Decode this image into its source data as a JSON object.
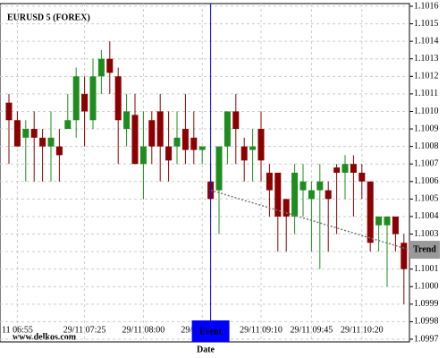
{
  "chart_data": {
    "type": "candlestick",
    "title": "EURUSD 5 (FOREX)",
    "watermark": "www.delkos.com",
    "x_label": "Date",
    "categories": [
      null,
      "11 06:55",
      null,
      null,
      null,
      null,
      null,
      null,
      null,
      "29/11 07:25",
      null,
      null,
      null,
      null,
      null,
      null,
      "29/11 08:00",
      null,
      null,
      null,
      null,
      null,
      null,
      "29/11 08:35",
      null,
      null,
      null,
      null,
      null,
      null,
      "29/11 09:10",
      null,
      null,
      null,
      null,
      null,
      "29/11 09:45",
      null,
      null,
      null,
      null,
      null,
      "29/11 10:20",
      null,
      null,
      null,
      null,
      null
    ],
    "open": [
      1.10105,
      1.10095,
      1.10085,
      1.1009,
      1.10085,
      1.1008,
      1.1008,
      1.1009,
      1.10095,
      1.1011,
      1.10095,
      1.1012,
      1.1013,
      1.1012,
      1.1009,
      1.10098,
      1.1007,
      1.10095,
      1.101,
      1.1008,
      1.1008,
      1.1009,
      1.10085,
      1.10078,
      1.1006,
      1.10055,
      1.1008,
      1.101,
      1.1008,
      1.10078,
      1.1009,
      1.10065,
      1.10065,
      1.1005,
      1.1004,
      1.10055,
      1.1005,
      1.10055,
      1.10055,
      1.10068,
      1.10065,
      1.1007,
      1.10065,
      1.1006,
      1.10035,
      1.10035,
      1.1004,
      1.10025
    ],
    "high": [
      1.1011,
      1.101,
      1.10095,
      1.101,
      1.1009,
      1.101,
      1.1009,
      1.1011,
      1.10125,
      1.1012,
      1.1013,
      1.10135,
      1.1014,
      1.10125,
      1.1011,
      1.1011,
      1.101,
      1.101,
      1.1011,
      1.101,
      1.101,
      1.1011,
      1.101,
      1.1008,
      1.1007,
      1.1008,
      1.101,
      1.1011,
      1.10085,
      1.1009,
      1.101,
      1.1007,
      1.10065,
      1.1005,
      1.1007,
      1.1007,
      1.1006,
      1.1007,
      1.1006,
      1.1007,
      1.10075,
      1.10075,
      1.1007,
      1.1006,
      1.1004,
      1.1004,
      1.1004,
      1.1003
    ],
    "low": [
      1.1007,
      1.1008,
      1.1006,
      1.1006,
      1.1006,
      1.1006,
      1.1006,
      1.1009,
      1.10085,
      1.1008,
      1.1009,
      1.1011,
      1.1011,
      1.1007,
      1.1008,
      1.1007,
      1.1005,
      1.1007,
      1.1006,
      1.1006,
      1.1007,
      1.1007,
      1.1007,
      1.1007,
      1.1005,
      1.1003,
      1.1007,
      1.1007,
      1.1006,
      1.1006,
      1.1006,
      1.1004,
      1.1002,
      1.1002,
      1.1003,
      1.1004,
      1.1002,
      1.1001,
      1.1002,
      1.1003,
      1.1005,
      1.1004,
      1.1005,
      1.1002,
      1.1002,
      1.1,
      1.1002,
      1.0999
    ],
    "close": [
      1.10095,
      1.1008,
      1.1009,
      1.10085,
      1.1008,
      1.10085,
      1.10075,
      1.10095,
      1.1012,
      1.101,
      1.1012,
      1.1013,
      1.10122,
      1.10095,
      1.101,
      1.1007,
      1.1008,
      1.1008,
      1.1008,
      1.10072,
      1.10085,
      1.10078,
      1.10078,
      1.1008,
      1.1005,
      1.1008,
      1.101,
      1.1009,
      1.10072,
      1.1008,
      1.10072,
      1.10055,
      1.1004,
      1.1004,
      1.10065,
      1.1006,
      1.10055,
      1.1006,
      1.1005,
      1.10065,
      1.1007,
      1.10065,
      1.1006,
      1.10025,
      1.1004,
      1.1004,
      1.1003,
      1.1001
    ],
    "up_color": "#1e8c1e",
    "down_color": "#8b0000",
    "ylim": [
      1.0997,
      1.1016
    ],
    "yticks": [
      {
        "value": 1.0997,
        "label": "1.0997"
      },
      {
        "value": 1.0998,
        "label": "1.0998"
      },
      {
        "value": 1.0999,
        "label": "1.0999"
      },
      {
        "value": 1.1,
        "label": "1.1000"
      },
      {
        "value": 1.1001,
        "label": "1.1001"
      },
      {
        "value": 1.1002,
        "label": "1.1002"
      },
      {
        "value": 1.1003,
        "label": "1.1003"
      },
      {
        "value": 1.1004,
        "label": "1.1004"
      },
      {
        "value": 1.1005,
        "label": "1.1005"
      },
      {
        "value": 1.1006,
        "label": "1.1006"
      },
      {
        "value": 1.1007,
        "label": "1.1007"
      },
      {
        "value": 1.1008,
        "label": "1.1008"
      },
      {
        "value": 1.1009,
        "label": "1.1009"
      },
      {
        "value": 1.101,
        "label": "1.1010"
      },
      {
        "value": 1.1011,
        "label": "1.1011"
      },
      {
        "value": 1.1012,
        "label": "1.1012"
      },
      {
        "value": 1.1013,
        "label": "1.1013"
      },
      {
        "value": 1.1014,
        "label": "1.1014"
      },
      {
        "value": 1.1015,
        "label": "1.1015"
      },
      {
        "value": 1.1016,
        "label": "1.1016"
      }
    ],
    "grid": true,
    "event": {
      "label": "Event",
      "index": 24,
      "color": "#0000ff"
    },
    "trend": {
      "label": "Trend",
      "start_index": 24,
      "start_value": 1.10055,
      "end_index": 47,
      "end_value": 1.10022
    }
  }
}
